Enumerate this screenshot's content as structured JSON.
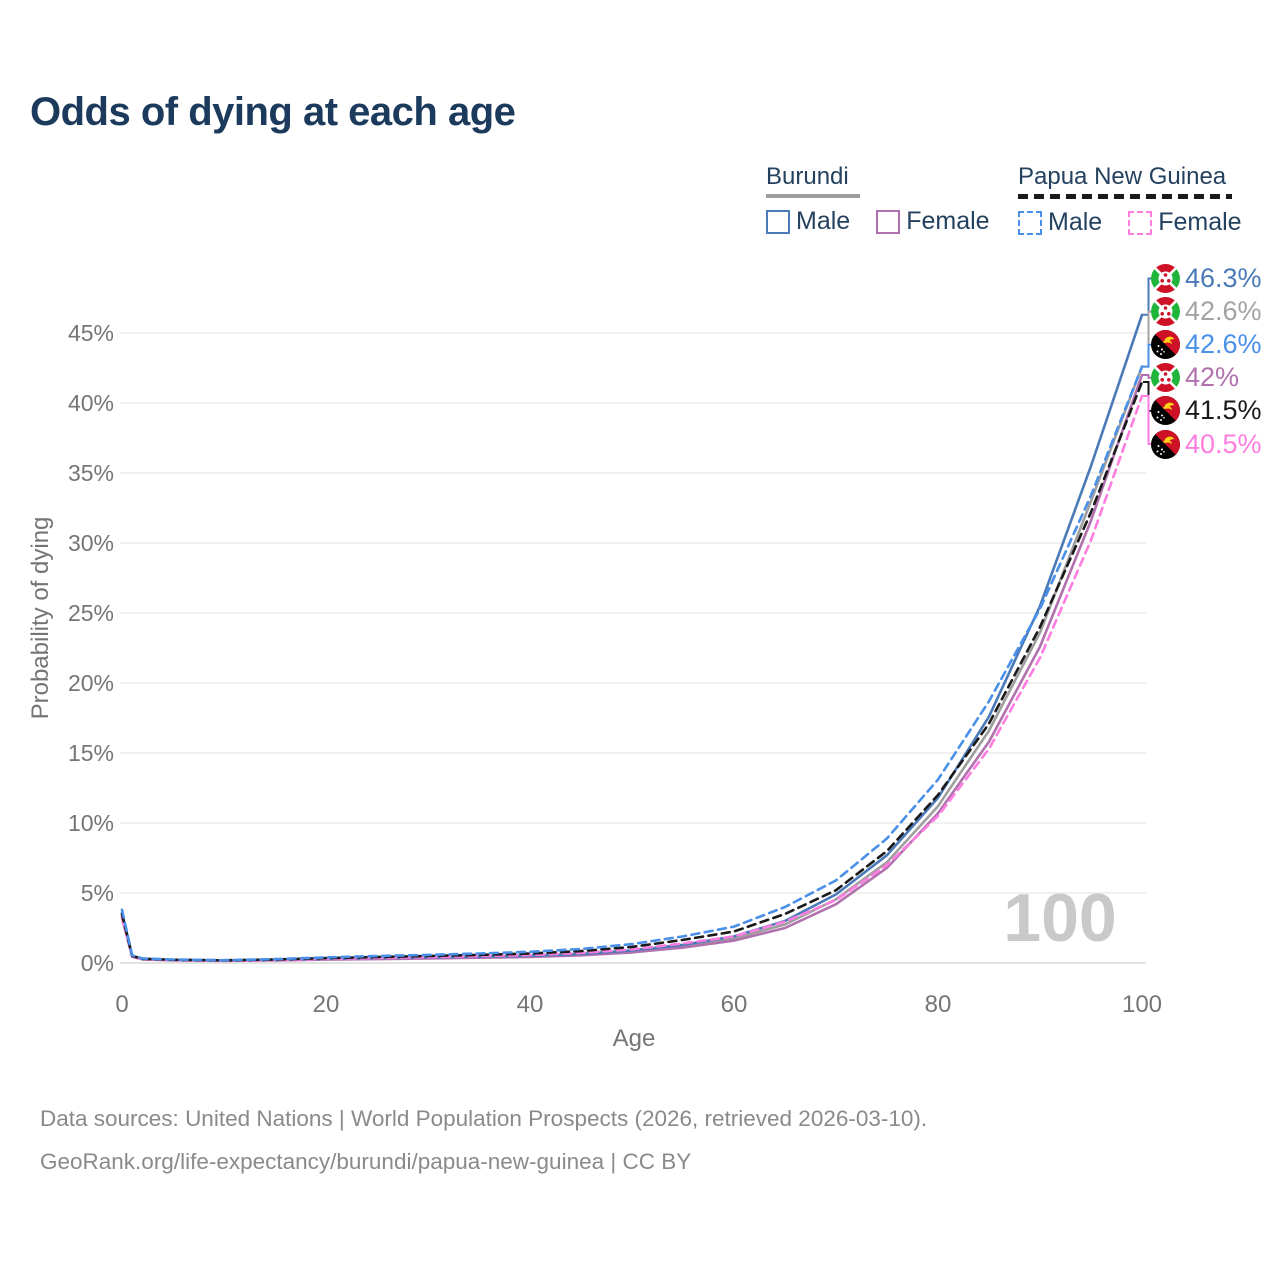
{
  "title": "Odds of dying at each age",
  "watermark": "100",
  "legend": {
    "groups": [
      {
        "country": "Burundi",
        "line_style": "solid",
        "underline_color": "#9e9e9e",
        "items": [
          {
            "label": "Male",
            "color": "#4a7ab8",
            "dashed": false
          },
          {
            "label": "Female",
            "color": "#b171ae",
            "dashed": false
          }
        ]
      },
      {
        "country": "Papua New Guinea",
        "line_style": "dashed",
        "underline_color": "#1a1a1a",
        "items": [
          {
            "label": "Male",
            "color": "#4a90e8",
            "dashed": true
          },
          {
            "label": "Female",
            "color": "#ff7de0",
            "dashed": true
          }
        ]
      }
    ]
  },
  "footer": {
    "line1": "Data sources: United Nations | World Population Prospects (2026, retrieved 2026-03-10).",
    "line2": "GeoRank.org/life-expectancy/burundi/papua-new-guinea | CC BY"
  },
  "chart_data": {
    "type": "line",
    "title": "Odds of dying at each age",
    "xlabel": "Age",
    "ylabel": "Probability of dying",
    "xlim": [
      0,
      100
    ],
    "ylim": [
      0,
      48
    ],
    "grid": "horizontal",
    "x_ticks": [
      {
        "v": 0,
        "label": "0"
      },
      {
        "v": 20,
        "label": "20"
      },
      {
        "v": 40,
        "label": "40"
      },
      {
        "v": 60,
        "label": "60"
      },
      {
        "v": 80,
        "label": "80"
      },
      {
        "v": 100,
        "label": "100"
      }
    ],
    "y_ticks": [
      {
        "v": 0,
        "label": "0%"
      },
      {
        "v": 5,
        "label": "5%"
      },
      {
        "v": 10,
        "label": "10%"
      },
      {
        "v": 15,
        "label": "15%"
      },
      {
        "v": 20,
        "label": "20%"
      },
      {
        "v": 25,
        "label": "25%"
      },
      {
        "v": 30,
        "label": "30%"
      },
      {
        "v": 35,
        "label": "35%"
      },
      {
        "v": 40,
        "label": "40%"
      },
      {
        "v": 45,
        "label": "45%"
      }
    ],
    "ages": [
      0,
      1,
      2,
      5,
      10,
      15,
      20,
      25,
      30,
      35,
      40,
      45,
      50,
      55,
      60,
      65,
      70,
      75,
      80,
      85,
      90,
      95,
      100
    ],
    "series": [
      {
        "name": "Burundi Both sexes",
        "country": "Burundi",
        "sex": "Both",
        "color": "#9e9e9e",
        "dashed": false,
        "values": [
          3.4,
          0.47,
          0.28,
          0.2,
          0.17,
          0.2,
          0.27,
          0.32,
          0.37,
          0.42,
          0.47,
          0.6,
          0.83,
          1.2,
          1.75,
          2.75,
          4.55,
          7.2,
          11.2,
          16.6,
          23.6,
          33.0,
          42.6
        ]
      },
      {
        "name": "Burundi Female",
        "country": "Burundi",
        "sex": "Female",
        "color": "#b171ae",
        "dashed": false,
        "values": [
          3.2,
          0.44,
          0.26,
          0.19,
          0.16,
          0.18,
          0.24,
          0.28,
          0.33,
          0.38,
          0.43,
          0.55,
          0.76,
          1.1,
          1.6,
          2.5,
          4.2,
          6.8,
          10.7,
          15.8,
          22.6,
          31.6,
          42.0
        ]
      },
      {
        "name": "Burundi Male",
        "country": "Burundi",
        "sex": "Male",
        "color": "#4a7ab8",
        "dashed": false,
        "values": [
          3.6,
          0.5,
          0.3,
          0.22,
          0.18,
          0.22,
          0.3,
          0.36,
          0.41,
          0.46,
          0.52,
          0.65,
          0.9,
          1.3,
          1.9,
          3.0,
          4.9,
          7.7,
          11.8,
          17.6,
          25.5,
          35.5,
          46.3
        ]
      },
      {
        "name": "Papua New Guinea Female",
        "country": "Papua New Guinea",
        "sex": "Female",
        "color": "#ff7de0",
        "dashed": true,
        "values": [
          3.3,
          0.46,
          0.28,
          0.21,
          0.17,
          0.21,
          0.3,
          0.36,
          0.42,
          0.49,
          0.57,
          0.72,
          0.97,
          1.4,
          1.9,
          2.95,
          4.5,
          7.0,
          10.5,
          15.3,
          21.8,
          30.2,
          40.5
        ]
      },
      {
        "name": "Papua New Guinea Both sexes",
        "country": "Papua New Guinea",
        "sex": "Both",
        "color": "#1a1a1a",
        "dashed": true,
        "values": [
          3.5,
          0.5,
          0.3,
          0.23,
          0.19,
          0.25,
          0.35,
          0.43,
          0.5,
          0.58,
          0.68,
          0.85,
          1.15,
          1.65,
          2.25,
          3.5,
          5.2,
          8.0,
          12.0,
          17.1,
          24.0,
          32.2,
          41.5
        ]
      },
      {
        "name": "Papua New Guinea Male",
        "country": "Papua New Guinea",
        "sex": "Male",
        "color": "#4a90e8",
        "dashed": true,
        "values": [
          3.8,
          0.55,
          0.33,
          0.25,
          0.2,
          0.28,
          0.4,
          0.5,
          0.58,
          0.68,
          0.8,
          1.0,
          1.35,
          1.9,
          2.6,
          4.0,
          5.9,
          8.9,
          13.1,
          18.7,
          25.3,
          33.4,
          42.6
        ]
      }
    ],
    "end_labels": [
      {
        "value": "46.3%",
        "series_index": 2,
        "series": "Burundi Male",
        "flag": "burundi",
        "color": "#4a7ab8"
      },
      {
        "value": "42.6%",
        "series_index": 0,
        "series": "Burundi Both sexes",
        "flag": "burundi",
        "color": "#a3a3a3"
      },
      {
        "value": "42.6%",
        "series_index": 5,
        "series": "Papua New Guinea Male",
        "flag": "papua-new-guinea",
        "color": "#4a90e8"
      },
      {
        "value": "42%",
        "series_index": 1,
        "series": "Burundi Female",
        "flag": "burundi",
        "color": "#b171ae"
      },
      {
        "value": "41.5%",
        "series_index": 4,
        "series": "Papua New Guinea Both sexes",
        "flag": "papua-new-guinea",
        "color": "#1a1a1a"
      },
      {
        "value": "40.5%",
        "series_index": 3,
        "series": "Papua New Guinea Female",
        "flag": "papua-new-guinea",
        "color": "#ff7de0"
      }
    ]
  }
}
